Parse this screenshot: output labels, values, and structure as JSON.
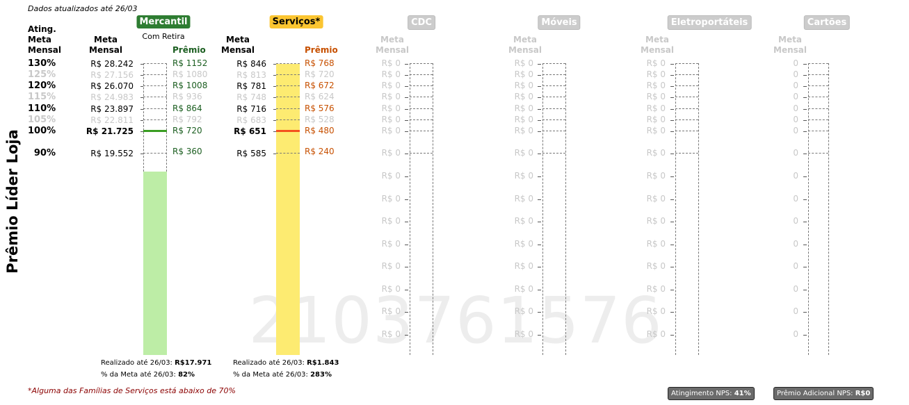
{
  "updated_text": "Dados atualizados até 26/03",
  "side_title": "Prêmio Líder Loja",
  "watermark": "2103761576",
  "header": {
    "ating": [
      "Ating.",
      "Meta",
      "Mensal"
    ],
    "meta": [
      "Meta",
      "Mensal"
    ],
    "premio": "Prêmio"
  },
  "levels": [
    {
      "pct": "130%",
      "active": true
    },
    {
      "pct": "125%",
      "active": false
    },
    {
      "pct": "120%",
      "active": true
    },
    {
      "pct": "115%",
      "active": false
    },
    {
      "pct": "110%",
      "active": true
    },
    {
      "pct": "105%",
      "active": false
    },
    {
      "pct": "100%",
      "active": true
    },
    {
      "pct": "90%",
      "active": true
    }
  ],
  "categories": [
    {
      "name": "Mercantil",
      "active": true,
      "badge_bg": "#2e7d32",
      "badge_fg": "#ffffff",
      "subtitle": "Com Retira",
      "bar_color": "#bdeda6",
      "target_color": "#3a9d23",
      "premio_color": "#1b5e20",
      "bar_fraction": 0.82,
      "metas": [
        "R$ 28.242",
        "R$ 27.156",
        "R$ 26.070",
        "R$ 24.983",
        "R$ 23.897",
        "R$ 22.811",
        "R$ 21.725",
        "R$ 19.552"
      ],
      "premios": [
        "R$ 1152",
        "R$ 1080",
        "R$ 1008",
        "R$ 936",
        "R$ 864",
        "R$ 792",
        "R$ 720",
        "R$ 360"
      ],
      "realizado_label": "Realizado até 26/03: ",
      "realizado_value": "R$17.971",
      "pct_label": "% da Meta até 26/03: ",
      "pct_value": "82%"
    },
    {
      "name": "Serviços*",
      "active": true,
      "badge_bg": "#fbc531",
      "badge_fg": "#000000",
      "subtitle": "",
      "bar_color": "#fdeb71",
      "target_color": "#f4511e",
      "premio_color": "#c75000",
      "bar_fraction": 2.83,
      "metas": [
        "R$ 846",
        "R$ 813",
        "R$ 781",
        "R$ 748",
        "R$ 716",
        "R$ 683",
        "R$ 651",
        "R$ 585"
      ],
      "premios": [
        "R$ 768",
        "R$ 720",
        "R$ 672",
        "R$ 624",
        "R$ 576",
        "R$ 528",
        "R$ 480",
        "R$ 240"
      ],
      "realizado_label": "Realizado até 26/03: ",
      "realizado_value": "R$1.843",
      "pct_label": "% da Meta até 26/03: ",
      "pct_value": "283%"
    },
    {
      "name": "CDC",
      "active": false,
      "badge_bg": "#cccccc",
      "badge_fg": "#ffffff",
      "tick_label": "R$ 0"
    },
    {
      "name": "Móveis",
      "active": false,
      "badge_bg": "#cccccc",
      "badge_fg": "#ffffff",
      "tick_label": "R$ 0"
    },
    {
      "name": "Eletroportáteis",
      "active": false,
      "badge_bg": "#cccccc",
      "badge_fg": "#ffffff",
      "tick_label": "R$ 0"
    },
    {
      "name": "Cartões",
      "active": false,
      "badge_bg": "#cccccc",
      "badge_fg": "#ffffff",
      "tick_label": "0"
    }
  ],
  "footnote": "*Alguma das Famílias de Serviços está abaixo de 70%",
  "nps": [
    {
      "label": "Atingimento NPS: ",
      "value": "41%"
    },
    {
      "label": "Prêmio Adicional NPS: ",
      "value": "R$0"
    }
  ]
}
